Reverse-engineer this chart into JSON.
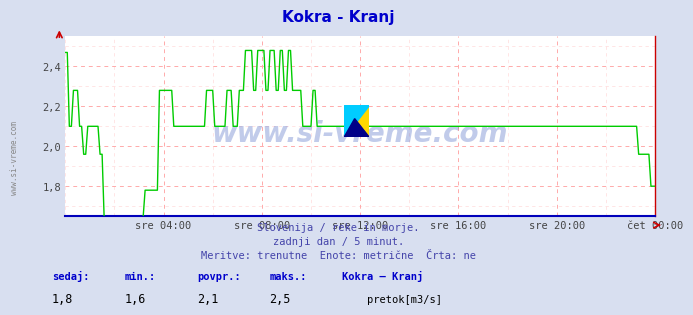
{
  "title": "Kokra - Kranj",
  "title_color": "#0000cc",
  "bg_color": "#d8dff0",
  "plot_bg_color": "#ffffff",
  "grid_color_major": "#ffaaaa",
  "grid_color_minor": "#ffe0e0",
  "line_color": "#00cc00",
  "axis_color": "#0000ff",
  "xlim": [
    0,
    288
  ],
  "ylim": [
    1.65,
    2.55
  ],
  "yticks": [
    1.8,
    2.0,
    2.2,
    2.4
  ],
  "xtick_positions": [
    48,
    96,
    144,
    192,
    240,
    288
  ],
  "xtick_labels": [
    "sre 04:00",
    "sre 08:00",
    "sre 12:00",
    "sre 16:00",
    "sre 20:00",
    "čet 00:00"
  ],
  "subtitle_lines": [
    "Slovenija / reke in morje.",
    "zadnji dan / 5 minut.",
    "Meritve: trenutne  Enote: metrične  Črta: ne"
  ],
  "subtitle_color": "#4444aa",
  "footer_labels": [
    "sedaj:",
    "min.:",
    "povpr.:",
    "maks.:",
    "Kokra – Kranj"
  ],
  "footer_values": [
    "1,8",
    "1,6",
    "2,1",
    "2,5"
  ],
  "footer_legend_label": "pretok[m3/s]",
  "footer_color": "#0000cc",
  "watermark_text": "www.si-vreme.com",
  "watermark_color": "#3355bb",
  "left_label": "www.si-vreme.com",
  "series": [
    [
      0,
      2.47
    ],
    [
      1,
      2.47
    ],
    [
      2,
      2.1
    ],
    [
      3,
      2.1
    ],
    [
      4,
      2.28
    ],
    [
      5,
      2.28
    ],
    [
      6,
      2.28
    ],
    [
      7,
      2.1
    ],
    [
      8,
      2.1
    ],
    [
      9,
      1.96
    ],
    [
      10,
      1.96
    ],
    [
      11,
      2.1
    ],
    [
      12,
      2.1
    ],
    [
      13,
      2.1
    ],
    [
      14,
      2.1
    ],
    [
      15,
      2.1
    ],
    [
      16,
      2.1
    ],
    [
      17,
      1.96
    ],
    [
      18,
      1.96
    ],
    [
      19,
      1.64
    ],
    [
      20,
      1.64
    ],
    [
      21,
      1.64
    ],
    [
      22,
      1.64
    ],
    [
      23,
      1.64
    ],
    [
      24,
      1.64
    ],
    [
      25,
      1.64
    ],
    [
      26,
      1.64
    ],
    [
      27,
      1.64
    ],
    [
      28,
      1.64
    ],
    [
      29,
      1.64
    ],
    [
      30,
      1.64
    ],
    [
      31,
      1.64
    ],
    [
      32,
      1.64
    ],
    [
      33,
      1.64
    ],
    [
      34,
      1.64
    ],
    [
      35,
      1.64
    ],
    [
      36,
      1.64
    ],
    [
      37,
      1.64
    ],
    [
      38,
      1.64
    ],
    [
      39,
      1.78
    ],
    [
      40,
      1.78
    ],
    [
      41,
      1.78
    ],
    [
      42,
      1.78
    ],
    [
      43,
      1.78
    ],
    [
      44,
      1.78
    ],
    [
      45,
      1.78
    ],
    [
      46,
      2.28
    ],
    [
      47,
      2.28
    ],
    [
      48,
      2.28
    ],
    [
      49,
      2.28
    ],
    [
      50,
      2.28
    ],
    [
      51,
      2.28
    ],
    [
      52,
      2.28
    ],
    [
      53,
      2.1
    ],
    [
      54,
      2.1
    ],
    [
      55,
      2.1
    ],
    [
      56,
      2.1
    ],
    [
      57,
      2.1
    ],
    [
      58,
      2.1
    ],
    [
      59,
      2.1
    ],
    [
      60,
      2.1
    ],
    [
      61,
      2.1
    ],
    [
      62,
      2.1
    ],
    [
      63,
      2.1
    ],
    [
      64,
      2.1
    ],
    [
      65,
      2.1
    ],
    [
      66,
      2.1
    ],
    [
      67,
      2.1
    ],
    [
      68,
      2.1
    ],
    [
      69,
      2.28
    ],
    [
      70,
      2.28
    ],
    [
      71,
      2.28
    ],
    [
      72,
      2.28
    ],
    [
      73,
      2.1
    ],
    [
      74,
      2.1
    ],
    [
      75,
      2.1
    ],
    [
      76,
      2.1
    ],
    [
      77,
      2.1
    ],
    [
      78,
      2.1
    ],
    [
      79,
      2.28
    ],
    [
      80,
      2.28
    ],
    [
      81,
      2.28
    ],
    [
      82,
      2.1
    ],
    [
      83,
      2.1
    ],
    [
      84,
      2.1
    ],
    [
      85,
      2.28
    ],
    [
      86,
      2.28
    ],
    [
      87,
      2.28
    ],
    [
      88,
      2.48
    ],
    [
      89,
      2.48
    ],
    [
      90,
      2.48
    ],
    [
      91,
      2.48
    ],
    [
      92,
      2.28
    ],
    [
      93,
      2.28
    ],
    [
      94,
      2.48
    ],
    [
      95,
      2.48
    ],
    [
      96,
      2.48
    ],
    [
      97,
      2.48
    ],
    [
      98,
      2.28
    ],
    [
      99,
      2.28
    ],
    [
      100,
      2.48
    ],
    [
      101,
      2.48
    ],
    [
      102,
      2.48
    ],
    [
      103,
      2.28
    ],
    [
      104,
      2.28
    ],
    [
      105,
      2.48
    ],
    [
      106,
      2.48
    ],
    [
      107,
      2.28
    ],
    [
      108,
      2.28
    ],
    [
      109,
      2.48
    ],
    [
      110,
      2.48
    ],
    [
      111,
      2.28
    ],
    [
      112,
      2.28
    ],
    [
      113,
      2.28
    ],
    [
      114,
      2.28
    ],
    [
      115,
      2.28
    ],
    [
      116,
      2.1
    ],
    [
      117,
      2.1
    ],
    [
      118,
      2.1
    ],
    [
      119,
      2.1
    ],
    [
      120,
      2.1
    ],
    [
      121,
      2.28
    ],
    [
      122,
      2.28
    ],
    [
      123,
      2.1
    ],
    [
      124,
      2.1
    ],
    [
      125,
      2.1
    ],
    [
      126,
      2.1
    ],
    [
      127,
      2.1
    ],
    [
      128,
      2.1
    ],
    [
      129,
      2.1
    ],
    [
      130,
      2.1
    ],
    [
      131,
      2.1
    ],
    [
      132,
      2.1
    ],
    [
      133,
      2.1
    ],
    [
      134,
      2.1
    ],
    [
      135,
      2.1
    ],
    [
      136,
      2.1
    ],
    [
      137,
      2.1
    ],
    [
      138,
      2.1
    ],
    [
      139,
      2.1
    ],
    [
      140,
      2.1
    ],
    [
      141,
      2.1
    ],
    [
      142,
      2.1
    ],
    [
      143,
      2.1
    ],
    [
      144,
      2.1
    ],
    [
      145,
      2.1
    ],
    [
      146,
      2.1
    ],
    [
      147,
      2.1
    ],
    [
      148,
      2.1
    ],
    [
      149,
      2.1
    ],
    [
      150,
      2.1
    ],
    [
      151,
      2.1
    ],
    [
      152,
      2.1
    ],
    [
      153,
      2.1
    ],
    [
      154,
      2.1
    ],
    [
      155,
      2.1
    ],
    [
      156,
      2.1
    ],
    [
      157,
      2.1
    ],
    [
      158,
      2.1
    ],
    [
      159,
      2.1
    ],
    [
      160,
      2.1
    ],
    [
      161,
      2.1
    ],
    [
      162,
      2.1
    ],
    [
      163,
      2.1
    ],
    [
      164,
      2.1
    ],
    [
      165,
      2.1
    ],
    [
      166,
      2.1
    ],
    [
      167,
      2.1
    ],
    [
      168,
      2.1
    ],
    [
      169,
      2.1
    ],
    [
      170,
      2.1
    ],
    [
      171,
      2.1
    ],
    [
      172,
      2.1
    ],
    [
      173,
      2.1
    ],
    [
      174,
      2.1
    ],
    [
      175,
      2.1
    ],
    [
      176,
      2.1
    ],
    [
      177,
      2.1
    ],
    [
      178,
      2.1
    ],
    [
      179,
      2.1
    ],
    [
      180,
      2.1
    ],
    [
      181,
      2.1
    ],
    [
      182,
      2.1
    ],
    [
      183,
      2.1
    ],
    [
      184,
      2.1
    ],
    [
      185,
      2.1
    ],
    [
      186,
      2.1
    ],
    [
      187,
      2.1
    ],
    [
      188,
      2.1
    ],
    [
      189,
      2.1
    ],
    [
      190,
      2.1
    ],
    [
      191,
      2.1
    ],
    [
      192,
      2.1
    ],
    [
      193,
      2.1
    ],
    [
      194,
      2.1
    ],
    [
      195,
      2.1
    ],
    [
      196,
      2.1
    ],
    [
      197,
      2.1
    ],
    [
      198,
      2.1
    ],
    [
      199,
      2.1
    ],
    [
      200,
      2.1
    ],
    [
      201,
      2.1
    ],
    [
      202,
      2.1
    ],
    [
      203,
      2.1
    ],
    [
      204,
      2.1
    ],
    [
      205,
      2.1
    ],
    [
      206,
      2.1
    ],
    [
      207,
      2.1
    ],
    [
      208,
      2.1
    ],
    [
      209,
      2.1
    ],
    [
      210,
      2.1
    ],
    [
      211,
      2.1
    ],
    [
      212,
      2.1
    ],
    [
      213,
      2.1
    ],
    [
      214,
      2.1
    ],
    [
      215,
      2.1
    ],
    [
      216,
      2.1
    ],
    [
      217,
      2.1
    ],
    [
      218,
      2.1
    ],
    [
      219,
      2.1
    ],
    [
      220,
      2.1
    ],
    [
      221,
      2.1
    ],
    [
      222,
      2.1
    ],
    [
      223,
      2.1
    ],
    [
      224,
      2.1
    ],
    [
      225,
      2.1
    ],
    [
      226,
      2.1
    ],
    [
      227,
      2.1
    ],
    [
      228,
      2.1
    ],
    [
      229,
      2.1
    ],
    [
      230,
      2.1
    ],
    [
      231,
      2.1
    ],
    [
      232,
      2.1
    ],
    [
      233,
      2.1
    ],
    [
      234,
      2.1
    ],
    [
      235,
      2.1
    ],
    [
      236,
      2.1
    ],
    [
      237,
      2.1
    ],
    [
      238,
      2.1
    ],
    [
      239,
      2.1
    ],
    [
      240,
      2.1
    ],
    [
      241,
      2.1
    ],
    [
      242,
      2.1
    ],
    [
      243,
      2.1
    ],
    [
      244,
      2.1
    ],
    [
      245,
      2.1
    ],
    [
      246,
      2.1
    ],
    [
      247,
      2.1
    ],
    [
      248,
      2.1
    ],
    [
      249,
      2.1
    ],
    [
      250,
      2.1
    ],
    [
      251,
      2.1
    ],
    [
      252,
      2.1
    ],
    [
      253,
      2.1
    ],
    [
      254,
      2.1
    ],
    [
      255,
      2.1
    ],
    [
      256,
      2.1
    ],
    [
      257,
      2.1
    ],
    [
      258,
      2.1
    ],
    [
      259,
      2.1
    ],
    [
      260,
      2.1
    ],
    [
      261,
      2.1
    ],
    [
      262,
      2.1
    ],
    [
      263,
      2.1
    ],
    [
      264,
      2.1
    ],
    [
      265,
      2.1
    ],
    [
      266,
      2.1
    ],
    [
      267,
      2.1
    ],
    [
      268,
      2.1
    ],
    [
      269,
      2.1
    ],
    [
      270,
      2.1
    ],
    [
      271,
      2.1
    ],
    [
      272,
      2.1
    ],
    [
      273,
      2.1
    ],
    [
      274,
      2.1
    ],
    [
      275,
      2.1
    ],
    [
      276,
      2.1
    ],
    [
      277,
      2.1
    ],
    [
      278,
      2.1
    ],
    [
      279,
      2.1
    ],
    [
      280,
      1.96
    ],
    [
      281,
      1.96
    ],
    [
      282,
      1.96
    ],
    [
      283,
      1.96
    ],
    [
      284,
      1.96
    ],
    [
      285,
      1.96
    ],
    [
      286,
      1.8
    ],
    [
      287,
      1.8
    ],
    [
      288,
      1.8
    ]
  ]
}
